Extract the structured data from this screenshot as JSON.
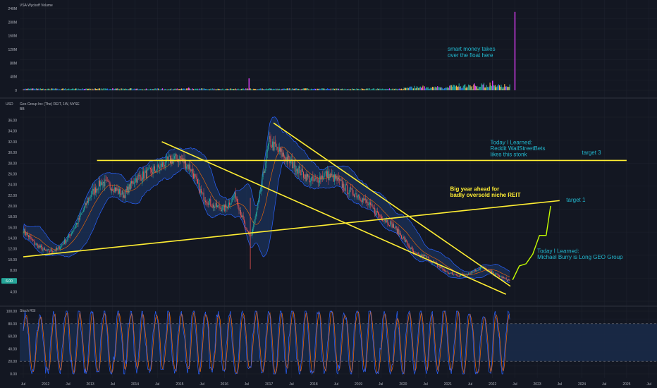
{
  "chart_data": [
    {
      "type": "bar",
      "pane": "volume",
      "title": "VSA Wyckoff Volume",
      "y_ticks": [
        "0",
        "40M",
        "80M",
        "120M",
        "160M",
        "200M",
        "240M"
      ],
      "ylim": [
        0,
        240
      ],
      "annotations": [
        "smart money takes",
        "over the float here"
      ],
      "spike_years": [
        2013.5,
        2015.2,
        2016.55,
        2022.5,
        2022.0
      ],
      "spike_values": [
        6,
        8,
        35,
        230,
        28
      ]
    },
    {
      "type": "line",
      "pane": "price",
      "title": "Geo Group Inc (The) REIT, 1W, NYSE",
      "subtitle": "BB",
      "currency": "USD",
      "y_ticks": [
        "4.00",
        "6.00",
        "8.00",
        "10.00",
        "12.00",
        "14.00",
        "16.00",
        "18.00",
        "20.00",
        "22.00",
        "24.00",
        "26.00",
        "28.00",
        "30.00",
        "32.00",
        "34.00",
        "36.00"
      ],
      "ylim": [
        2.2,
        36.6
      ],
      "current_price": "6.00",
      "x_ticks": [
        "Jul",
        "2012",
        "Jul",
        "2013",
        "Jul",
        "2014",
        "Jul",
        "2015",
        "Jul",
        "2016",
        "Jul",
        "2017",
        "Jul",
        "2018",
        "Jul",
        "2019",
        "Jul",
        "2020",
        "Jul",
        "2021",
        "Jul",
        "2022",
        "Jul",
        "2023",
        "Jul",
        "2024",
        "Jul",
        "2025",
        "Jul"
      ],
      "x_tick_years": [
        2011.5,
        2012,
        2012.5,
        2013,
        2013.5,
        2014,
        2014.5,
        2015,
        2015.5,
        2016,
        2016.5,
        2017,
        2017.5,
        2018,
        2018.5,
        2019,
        2019.5,
        2020,
        2020.5,
        2021,
        2021.5,
        2022,
        2022.5,
        2023,
        2023.5,
        2024,
        2024.5,
        2025,
        2025.5
      ],
      "price_series": {
        "x": [
          2011.5,
          2011.75,
          2012.0,
          2012.25,
          2012.5,
          2012.75,
          2013.0,
          2013.25,
          2013.5,
          2013.75,
          2014.0,
          2014.25,
          2014.5,
          2014.75,
          2015.0,
          2015.25,
          2015.5,
          2015.75,
          2016.0,
          2016.25,
          2016.5,
          2016.6,
          2016.75,
          2017.0,
          2017.25,
          2017.5,
          2017.75,
          2018.0,
          2018.25,
          2018.5,
          2018.75,
          2019.0,
          2019.25,
          2019.5,
          2019.75,
          2020.0,
          2020.25,
          2020.5,
          2020.75,
          2021.0,
          2021.25,
          2021.5,
          2021.75,
          2022.0,
          2022.25,
          2022.4
        ],
        "y": [
          15.5,
          13.0,
          11.5,
          11.8,
          14.0,
          17.5,
          22.0,
          24.5,
          23.5,
          22.0,
          25.0,
          26.0,
          27.0,
          28.5,
          29.0,
          27.0,
          22.0,
          20.0,
          19.5,
          22.0,
          15.0,
          14.5,
          20.0,
          32.0,
          30.0,
          28.0,
          26.0,
          24.5,
          26.0,
          25.0,
          23.0,
          22.0,
          20.0,
          18.0,
          16.5,
          14.0,
          11.0,
          10.5,
          9.0,
          7.5,
          7.0,
          7.5,
          8.5,
          7.5,
          6.5,
          6.0
        ]
      },
      "projection_path": {
        "x": [
          2022.45,
          2022.6,
          2022.75,
          2022.9,
          2023.05,
          2023.2,
          2023.3
        ],
        "y": [
          6.2,
          8.8,
          9.2,
          11.0,
          14.5,
          14.5,
          20.0
        ]
      },
      "trendlines": [
        {
          "name": "target 3",
          "x": [
            2013.15,
            2025.0
          ],
          "y": [
            28.5,
            28.5
          ]
        },
        {
          "name": "target 1",
          "x": [
            2011.5,
            2023.5
          ],
          "y": [
            10.5,
            21.0
          ]
        },
        {
          "name": "descending channel lower",
          "x": [
            2014.6,
            2022.3
          ],
          "y": [
            32.0,
            3.5
          ]
        },
        {
          "name": "descending channel upper",
          "x": [
            2017.1,
            2022.4
          ],
          "y": [
            35.5,
            5.0
          ]
        }
      ],
      "annotations": [
        {
          "lines": [
            "Today I Learned:",
            "Reddit WallStreetBets",
            "likes this stonk"
          ],
          "color": "cyan",
          "x": 2021.95,
          "y": 31.5
        },
        {
          "text": "target 3",
          "color": "cyan",
          "x": 2024.0,
          "y": 29.6
        },
        {
          "lines": [
            "Big year ahead for",
            "badly oversold niche REIT"
          ],
          "color": "yellow",
          "x": 2021.05,
          "y": 22.8
        },
        {
          "text": "target 1",
          "color": "cyan",
          "x": 2023.65,
          "y": 20.8
        },
        {
          "lines": [
            "Today I Learned:",
            "Michael Burry is Long GEO Group"
          ],
          "color": "cyan",
          "x": 2023.0,
          "y": 11.2
        }
      ]
    },
    {
      "type": "line",
      "pane": "stoch_rsi",
      "title": "Stoch RSI",
      "y_ticks": [
        "0.00",
        "20.00",
        "40.00",
        "60.00",
        "80.00",
        "100.00"
      ],
      "ylim": [
        0,
        100
      ],
      "band": [
        20,
        80
      ]
    }
  ],
  "colors": {
    "background": "#131722",
    "grid": "#1e222d",
    "candle_up": "#26a69a",
    "candle_down": "#ef5350",
    "bollinger": "#2962ff",
    "bollinger_fill": "#1e3a6e",
    "basis": "#ff6d00",
    "trendline": "#ffee33",
    "cyan": "#22b8cf",
    "stoch_k": "#2962ff",
    "stoch_d": "#ff6d00",
    "stoch_band": "#1a2a48",
    "price_badge": "#26a69a"
  }
}
